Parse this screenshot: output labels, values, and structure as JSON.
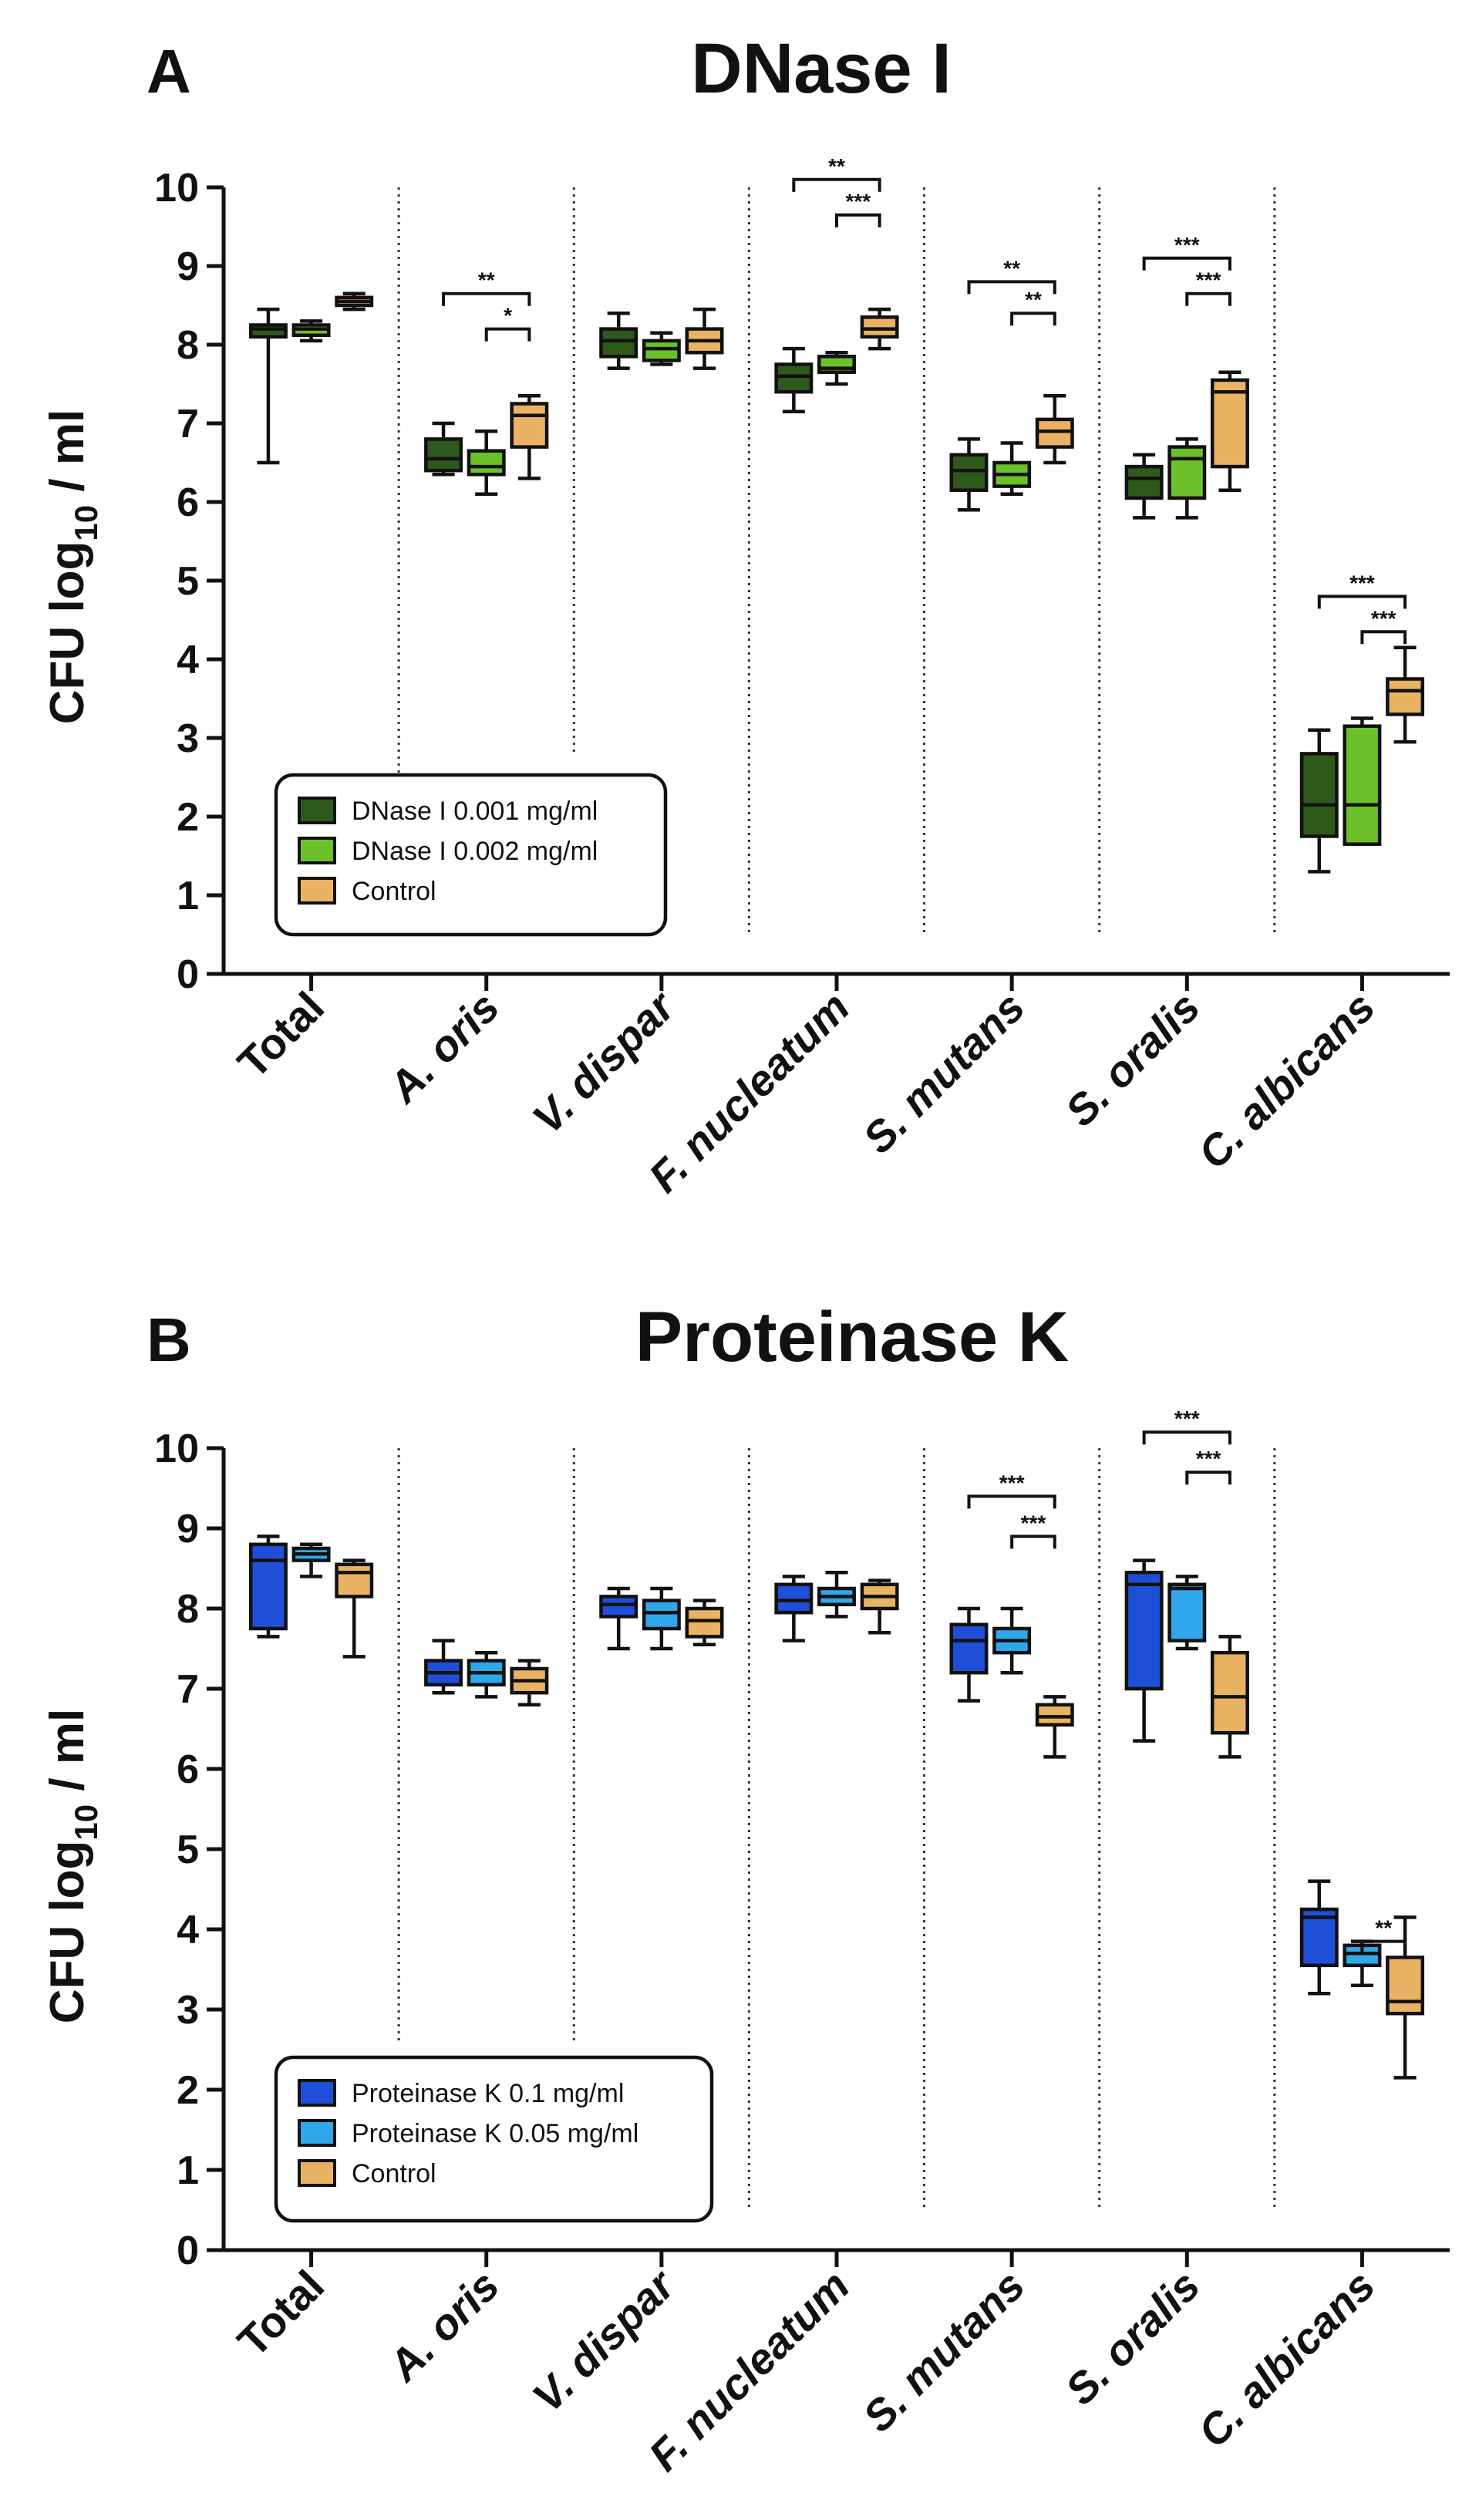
{
  "chart_data": [
    {
      "type": "box",
      "panel_label": "A",
      "title": "DNase I",
      "ylabel_main": "CFU log",
      "ylabel_sub": "10",
      "ylabel_tail": " / ml",
      "ylim": [
        0,
        10
      ],
      "yticks": [
        "0",
        "1",
        "2",
        "3",
        "4",
        "5",
        "6",
        "7",
        "8",
        "9",
        "10"
      ],
      "legend_position": "lower-left",
      "categories": [
        "Total",
        "A. oris",
        "V. dispar",
        "F. nucleatum",
        "S. mutans",
        "S. oralis",
        "C. albicans"
      ],
      "series": [
        {
          "name": "DNase I 0.001 mg/ml",
          "color": "#2d5a1b",
          "boxes": [
            {
              "min": 6.5,
              "q1": 8.1,
              "median": 8.2,
              "q3": 8.25,
              "max": 8.45
            },
            {
              "min": 6.35,
              "q1": 6.4,
              "median": 6.55,
              "q3": 6.8,
              "max": 7.0
            },
            {
              "min": 7.7,
              "q1": 7.85,
              "median": 8.05,
              "q3": 8.2,
              "max": 8.4
            },
            {
              "min": 7.15,
              "q1": 7.4,
              "median": 7.6,
              "q3": 7.75,
              "max": 7.95
            },
            {
              "min": 5.9,
              "q1": 6.15,
              "median": 6.4,
              "q3": 6.6,
              "max": 6.8
            },
            {
              "min": 5.8,
              "q1": 6.05,
              "median": 6.3,
              "q3": 6.45,
              "max": 6.6
            },
            {
              "min": 1.3,
              "q1": 1.75,
              "median": 2.15,
              "q3": 2.8,
              "max": 3.1
            }
          ]
        },
        {
          "name": "DNase I 0.002 mg/ml",
          "color": "#6cc12a",
          "boxes": [
            {
              "min": 8.05,
              "q1": 8.12,
              "median": 8.2,
              "q3": 8.25,
              "max": 8.3
            },
            {
              "min": 6.1,
              "q1": 6.35,
              "median": 6.45,
              "q3": 6.65,
              "max": 6.9
            },
            {
              "min": 7.75,
              "q1": 7.8,
              "median": 7.95,
              "q3": 8.05,
              "max": 8.15
            },
            {
              "min": 7.5,
              "q1": 7.65,
              "median": 7.7,
              "q3": 7.85,
              "max": 7.9
            },
            {
              "min": 6.1,
              "q1": 6.2,
              "median": 6.35,
              "q3": 6.5,
              "max": 6.75
            },
            {
              "min": 5.8,
              "q1": 6.05,
              "median": 6.55,
              "q3": 6.7,
              "max": 6.8
            },
            {
              "min": 1.65,
              "q1": 1.65,
              "median": 2.15,
              "q3": 3.15,
              "max": 3.25
            }
          ]
        },
        {
          "name": "Control",
          "color": "#e9b363",
          "boxes": [
            {
              "min": 8.45,
              "q1": 8.5,
              "median": 8.55,
              "q3": 8.6,
              "max": 8.65
            },
            {
              "min": 6.3,
              "q1": 6.7,
              "median": 7.1,
              "q3": 7.25,
              "max": 7.35
            },
            {
              "min": 7.7,
              "q1": 7.9,
              "median": 8.05,
              "q3": 8.2,
              "max": 8.45
            },
            {
              "min": 7.95,
              "q1": 8.1,
              "median": 8.2,
              "q3": 8.35,
              "max": 8.45
            },
            {
              "min": 6.5,
              "q1": 6.7,
              "median": 6.9,
              "q3": 7.05,
              "max": 7.35
            },
            {
              "min": 6.15,
              "q1": 6.45,
              "median": 7.4,
              "q3": 7.55,
              "max": 7.65
            },
            {
              "min": 2.95,
              "q1": 3.3,
              "median": 3.6,
              "q3": 3.75,
              "max": 4.15
            }
          ]
        }
      ],
      "significance": [
        {
          "category": 1,
          "from_series": 0,
          "to_series": 2,
          "y": 8.65,
          "label": "**"
        },
        {
          "category": 1,
          "from_series": 1,
          "to_series": 2,
          "y": 8.2,
          "label": "*"
        },
        {
          "category": 3,
          "from_series": 0,
          "to_series": 2,
          "y": 10.1,
          "label": "**"
        },
        {
          "category": 3,
          "from_series": 1,
          "to_series": 2,
          "y": 9.65,
          "label": "***"
        },
        {
          "category": 4,
          "from_series": 0,
          "to_series": 2,
          "y": 8.8,
          "label": "**"
        },
        {
          "category": 4,
          "from_series": 1,
          "to_series": 2,
          "y": 8.4,
          "label": "**"
        },
        {
          "category": 5,
          "from_series": 0,
          "to_series": 2,
          "y": 9.1,
          "label": "***"
        },
        {
          "category": 5,
          "from_series": 1,
          "to_series": 2,
          "y": 8.65,
          "label": "***"
        },
        {
          "category": 6,
          "from_series": 0,
          "to_series": 2,
          "y": 4.8,
          "label": "***"
        },
        {
          "category": 6,
          "from_series": 1,
          "to_series": 2,
          "y": 4.35,
          "label": "***"
        }
      ]
    },
    {
      "type": "box",
      "panel_label": "B",
      "title": "Proteinase K",
      "ylabel_main": "CFU log",
      "ylabel_sub": "10",
      "ylabel_tail": " / ml",
      "ylim": [
        0,
        10
      ],
      "yticks": [
        "0",
        "1",
        "2",
        "3",
        "4",
        "5",
        "6",
        "7",
        "8",
        "9",
        "10"
      ],
      "legend_position": "lower-left",
      "categories": [
        "Total",
        "A. oris",
        "V. dispar",
        "F. nucleatum",
        "S. mutans",
        "S. oralis",
        "C. albicans"
      ],
      "series": [
        {
          "name": "Proteinase K 0.1 mg/ml",
          "color": "#1f4fd8",
          "boxes": [
            {
              "min": 7.65,
              "q1": 7.75,
              "median": 8.6,
              "q3": 8.8,
              "max": 8.9
            },
            {
              "min": 6.95,
              "q1": 7.05,
              "median": 7.2,
              "q3": 7.35,
              "max": 7.6
            },
            {
              "min": 7.5,
              "q1": 7.9,
              "median": 8.05,
              "q3": 8.15,
              "max": 8.25
            },
            {
              "min": 7.6,
              "q1": 7.95,
              "median": 8.1,
              "q3": 8.3,
              "max": 8.4
            },
            {
              "min": 6.85,
              "q1": 7.2,
              "median": 7.6,
              "q3": 7.8,
              "max": 8.0
            },
            {
              "min": 6.35,
              "q1": 7.0,
              "median": 8.3,
              "q3": 8.45,
              "max": 8.6
            },
            {
              "min": 3.2,
              "q1": 3.55,
              "median": 4.15,
              "q3": 4.25,
              "max": 4.6
            }
          ]
        },
        {
          "name": "Proteinase K 0.05 mg/ml",
          "color": "#2ea8ea",
          "boxes": [
            {
              "min": 8.4,
              "q1": 8.6,
              "median": 8.68,
              "q3": 8.75,
              "max": 8.8
            },
            {
              "min": 6.9,
              "q1": 7.05,
              "median": 7.2,
              "q3": 7.35,
              "max": 7.45
            },
            {
              "min": 7.5,
              "q1": 7.75,
              "median": 7.95,
              "q3": 8.1,
              "max": 8.25
            },
            {
              "min": 7.9,
              "q1": 8.05,
              "median": 8.15,
              "q3": 8.25,
              "max": 8.45
            },
            {
              "min": 7.2,
              "q1": 7.45,
              "median": 7.6,
              "q3": 7.75,
              "max": 8.0
            },
            {
              "min": 7.5,
              "q1": 7.6,
              "median": 8.25,
              "q3": 8.3,
              "max": 8.4
            },
            {
              "min": 3.3,
              "q1": 3.55,
              "median": 3.7,
              "q3": 3.8,
              "max": 3.85
            }
          ]
        },
        {
          "name": "Control",
          "color": "#e9b363",
          "boxes": [
            {
              "min": 7.4,
              "q1": 8.15,
              "median": 8.45,
              "q3": 8.55,
              "max": 8.6
            },
            {
              "min": 6.8,
              "q1": 6.95,
              "median": 7.1,
              "q3": 7.25,
              "max": 7.35
            },
            {
              "min": 7.55,
              "q1": 7.65,
              "median": 7.85,
              "q3": 8.0,
              "max": 8.1
            },
            {
              "min": 7.7,
              "q1": 8.0,
              "median": 8.15,
              "q3": 8.3,
              "max": 8.35
            },
            {
              "min": 6.15,
              "q1": 6.55,
              "median": 6.65,
              "q3": 6.8,
              "max": 6.9
            },
            {
              "min": 6.15,
              "q1": 6.45,
              "median": 6.9,
              "q3": 7.45,
              "max": 7.65
            },
            {
              "min": 2.15,
              "q1": 2.95,
              "median": 3.1,
              "q3": 3.65,
              "max": 4.15
            }
          ]
        }
      ],
      "significance": [
        {
          "category": 4,
          "from_series": 0,
          "to_series": 2,
          "y": 9.4,
          "label": "***"
        },
        {
          "category": 4,
          "from_series": 1,
          "to_series": 2,
          "y": 8.9,
          "label": "***"
        },
        {
          "category": 5,
          "from_series": 0,
          "to_series": 2,
          "y": 10.2,
          "label": "***"
        },
        {
          "category": 5,
          "from_series": 1,
          "to_series": 2,
          "y": 9.7,
          "label": "***"
        },
        {
          "category": 6,
          "from_series": 1,
          "to_series": 2,
          "y": 3.85,
          "label": "**"
        }
      ]
    }
  ]
}
